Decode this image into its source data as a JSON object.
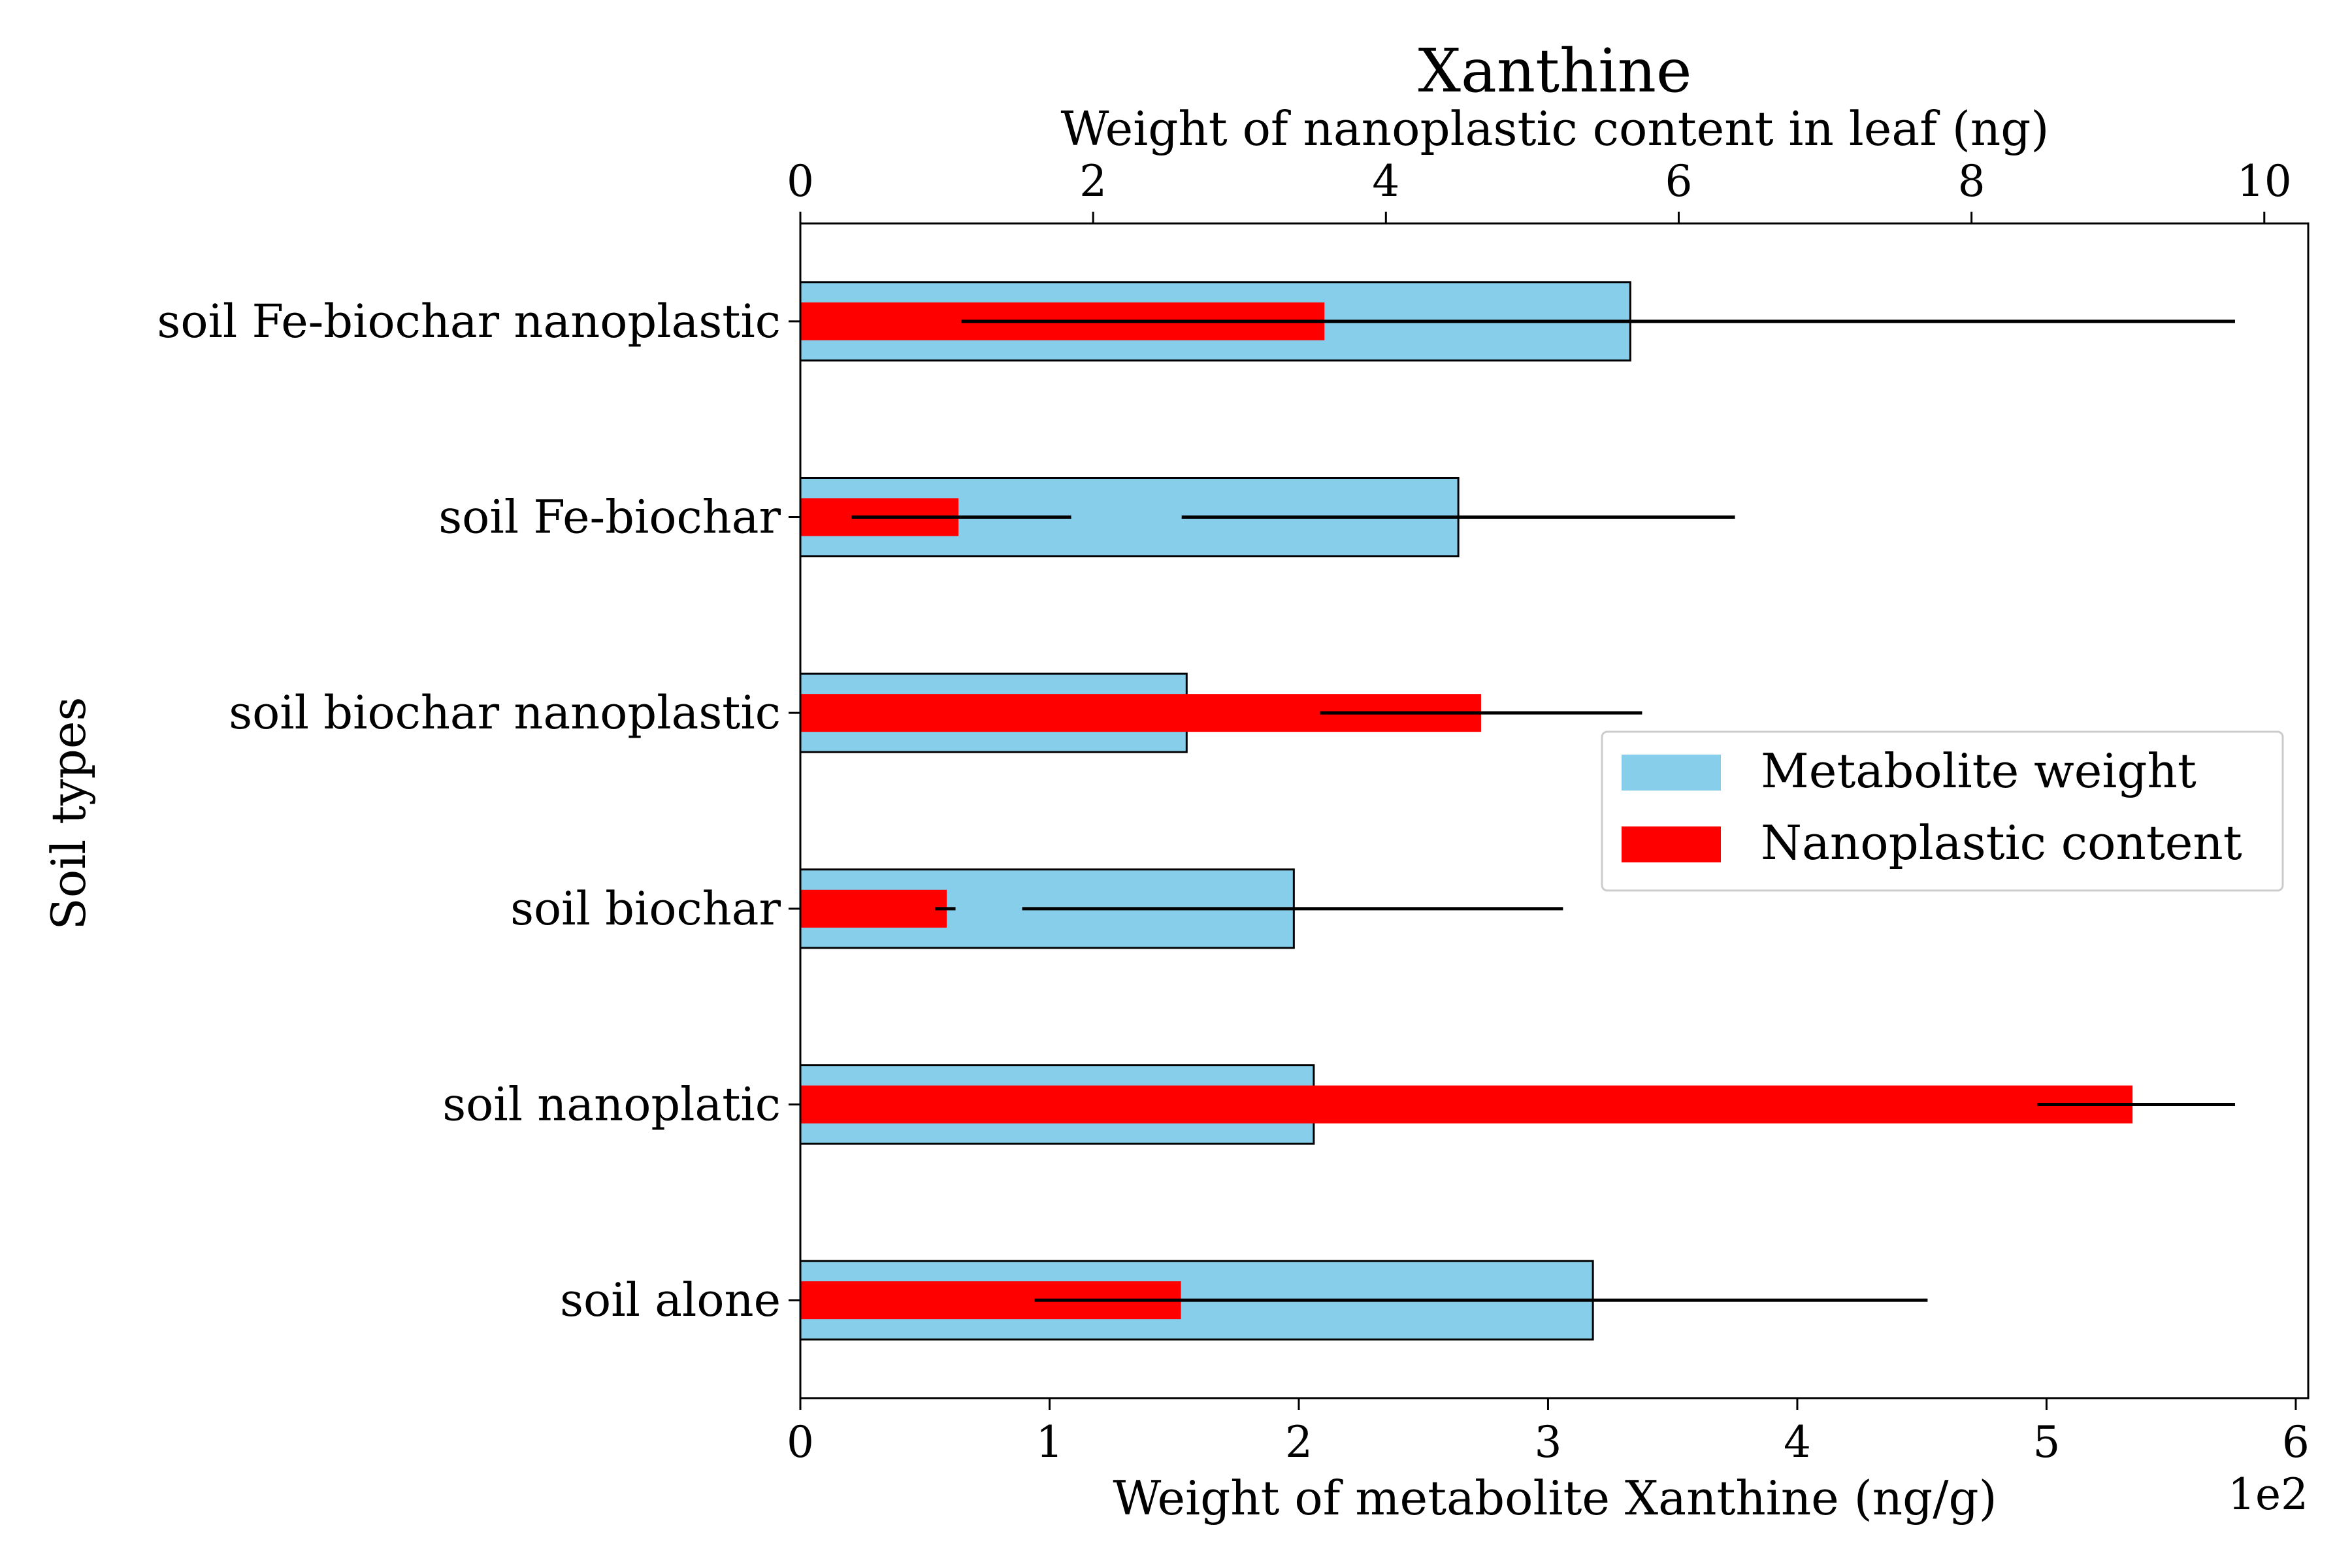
{
  "chart_data": {
    "type": "bar",
    "title": "Xanthine",
    "title_color": "#a52a2a",
    "ylabel": "Soil types",
    "categories": [
      "soil alone",
      "soil nanoplatic",
      "soil biochar",
      "soil biochar nanoplastic",
      "soil Fe-biochar",
      "soil Fe-biochar nanoplastic"
    ],
    "bottom_axis": {
      "label": "Weight of metabolite Xanthine (ng/g)",
      "range": [
        0,
        605
      ],
      "ticks": [
        0,
        100,
        200,
        300,
        400,
        500,
        600
      ],
      "tick_labels": [
        "0",
        "1",
        "2",
        "3",
        "4",
        "5",
        "6"
      ],
      "offset_text": "1e2"
    },
    "top_axis": {
      "label": "Weight of nanoplastic content in leaf (ng)",
      "range": [
        0,
        10.3
      ],
      "ticks": [
        0,
        2,
        4,
        6,
        8,
        10
      ],
      "tick_labels": [
        "0",
        "2",
        "4",
        "6",
        "8",
        "10"
      ]
    },
    "series": [
      {
        "name": "Metabolite weight",
        "axis": "bottom",
        "color": "#87ceeb",
        "edge_color": "#000000",
        "values": [
          318,
          206,
          198,
          155,
          264,
          333
        ],
        "error": [
          null,
          null,
          [
            89,
            306
          ],
          null,
          [
            153,
            375
          ],
          null
        ]
      },
      {
        "name": "Nanoplastic content",
        "axis": "top",
        "color": "#ff0000",
        "values": [
          2.6,
          9.1,
          1.0,
          4.65,
          1.08,
          3.58
        ],
        "error": [
          [
            1.6,
            7.7
          ],
          [
            8.45,
            9.8
          ],
          [
            0.92,
            1.06
          ],
          [
            3.55,
            5.75
          ],
          [
            0.35,
            1.85
          ],
          [
            1.1,
            9.8
          ]
        ]
      }
    ],
    "legend": {
      "placement": "center-right",
      "entries": [
        "Metabolite weight",
        "Nanoplastic content"
      ]
    }
  }
}
